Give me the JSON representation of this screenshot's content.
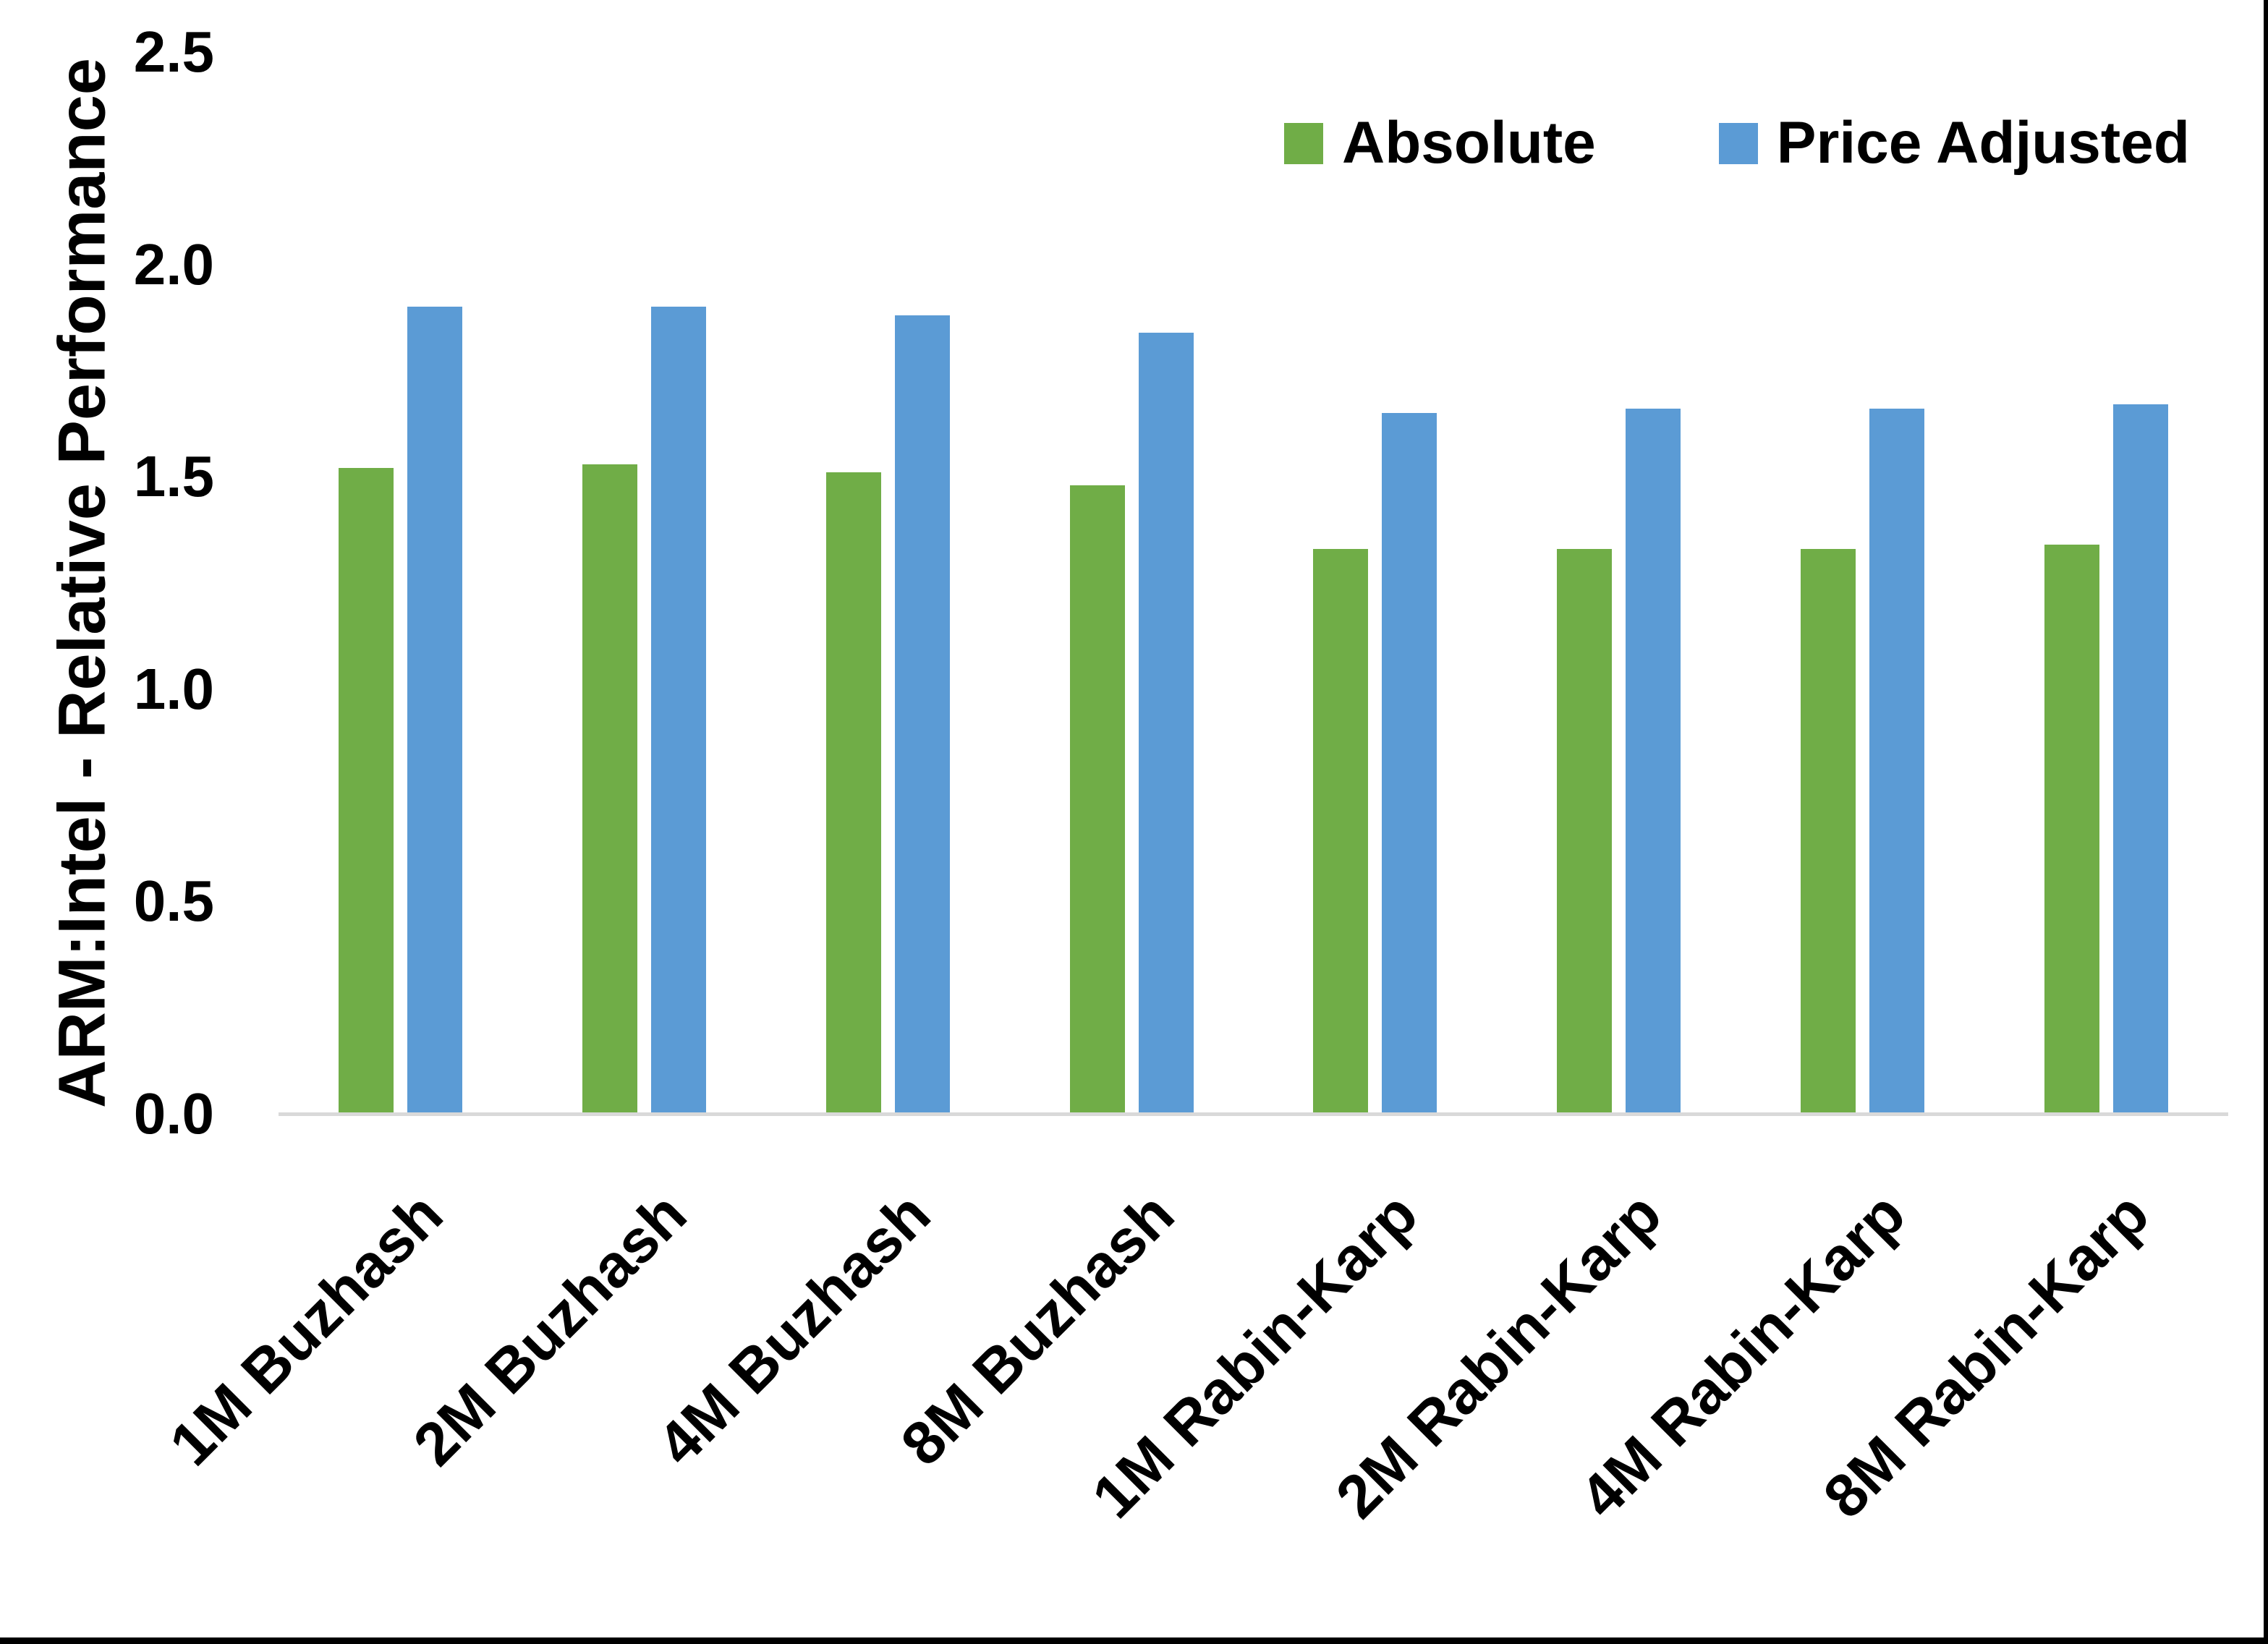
{
  "chart_data": {
    "type": "bar",
    "title": "",
    "ylabel": "ARM:Intel - Relative Performance",
    "xlabel": "",
    "ylim": [
      0,
      2.5
    ],
    "yticks": [
      "0.0",
      "0.5",
      "1.0",
      "1.5",
      "2.0",
      "2.5"
    ],
    "grid": false,
    "legend_position": "top-right",
    "categories": [
      "1M Buzhash",
      "2M Buzhash",
      "4M Buzhash",
      "8M Buzhash",
      "1M Rabin-Karp",
      "2M Rabin-Karp",
      "4M Rabin-Karp",
      "8M Rabin-Karp"
    ],
    "series": [
      {
        "name": "Absolute",
        "color": "#70AD47",
        "values": [
          1.52,
          1.53,
          1.51,
          1.48,
          1.33,
          1.33,
          1.33,
          1.34
        ]
      },
      {
        "name": "Price Adjusted",
        "color": "#5B9BD5",
        "values": [
          1.9,
          1.9,
          1.88,
          1.84,
          1.65,
          1.66,
          1.66,
          1.67
        ]
      }
    ]
  },
  "colors": {
    "axis_line": "#d9d9d9",
    "background": "#ffffff",
    "border": "#000000",
    "text": "#000000"
  }
}
